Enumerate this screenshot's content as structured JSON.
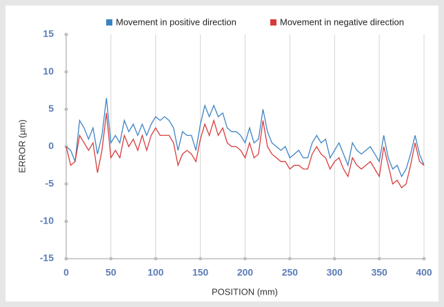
{
  "chart_data": {
    "type": "line",
    "xlabel": "POSITION (mm)",
    "ylabel": "ERROR (µm)",
    "x": [
      0,
      5,
      10,
      15,
      20,
      25,
      30,
      35,
      40,
      45,
      50,
      55,
      60,
      65,
      70,
      75,
      80,
      85,
      90,
      95,
      100,
      105,
      110,
      115,
      120,
      125,
      130,
      135,
      140,
      145,
      150,
      155,
      160,
      165,
      170,
      175,
      180,
      185,
      190,
      195,
      200,
      205,
      210,
      215,
      220,
      225,
      230,
      235,
      240,
      245,
      250,
      255,
      260,
      265,
      270,
      275,
      280,
      285,
      290,
      295,
      300,
      305,
      310,
      315,
      320,
      325,
      330,
      335,
      340,
      345,
      350,
      355,
      360,
      365,
      370,
      375,
      380,
      385,
      390,
      395,
      400
    ],
    "series": [
      {
        "name": "Movement in positive direction",
        "color": "#3b82c4",
        "values": [
          0,
          -0.5,
          -2,
          3.5,
          2.5,
          1,
          2.5,
          -1,
          1.5,
          6.5,
          0.5,
          1.5,
          0.5,
          3.5,
          2,
          3,
          1.5,
          3,
          1.5,
          3,
          4,
          3.5,
          4,
          3.5,
          2.5,
          -0.5,
          2,
          1.5,
          1.5,
          -0.5,
          3,
          5.5,
          4,
          5.5,
          4,
          4.5,
          2.5,
          2,
          2,
          1.5,
          0.5,
          2.5,
          0.5,
          1,
          5,
          2,
          0.5,
          0,
          -0.5,
          0,
          -1.5,
          -1,
          -0.5,
          -1.5,
          -1.5,
          0.5,
          1.5,
          0.5,
          1,
          -1.5,
          -0.5,
          0.5,
          -1,
          -2.5,
          0.5,
          -0.5,
          -1,
          -0.5,
          0,
          -1,
          -2,
          1.5,
          -1.5,
          -3,
          -2.5,
          -4,
          -3,
          -1,
          1.5,
          -1,
          -2.5
        ]
      },
      {
        "name": "Movement in negative direction",
        "color": "#d63a3a",
        "values": [
          0,
          -2.5,
          -2,
          1.5,
          0.5,
          -0.5,
          0.5,
          -3.5,
          -0.5,
          4.5,
          -1.5,
          -0.5,
          -1.5,
          1.5,
          0,
          1,
          -0.5,
          1.5,
          -0.5,
          1.5,
          2.5,
          1.5,
          1.5,
          1.5,
          0.5,
          -2.5,
          -1,
          -0.5,
          -1,
          -2,
          1,
          3,
          1.5,
          3.5,
          1.5,
          2.5,
          0.5,
          0,
          0,
          -0.5,
          -1.5,
          0.5,
          -1.5,
          -1,
          3.5,
          0,
          -1,
          -1.5,
          -2,
          -2,
          -3,
          -2.5,
          -2.5,
          -3,
          -3,
          -1,
          0,
          -1,
          -1.5,
          -3,
          -2,
          -1.5,
          -3,
          -4,
          -1.5,
          -2.5,
          -3,
          -2.5,
          -2,
          -3,
          -4,
          0,
          -2.5,
          -5,
          -4.5,
          -5.5,
          -5,
          -2.5,
          0.5,
          -2,
          -2.5
        ]
      }
    ],
    "xlim": [
      0,
      400
    ],
    "xticks": [
      0,
      50,
      100,
      150,
      200,
      250,
      300,
      350,
      400
    ],
    "ylim": [
      -15,
      15
    ],
    "yticks": [
      -15,
      -10,
      -5,
      0,
      5,
      10,
      15
    ],
    "grid": "x",
    "legend": "top"
  }
}
